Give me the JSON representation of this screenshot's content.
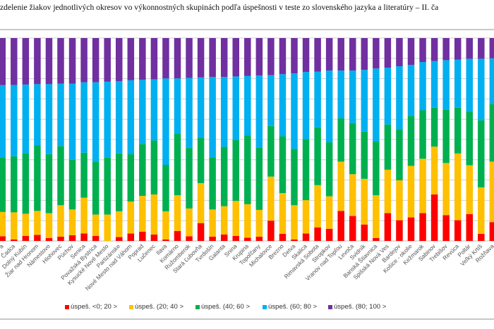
{
  "title": "zdelenie žiakov jednotlivých okresov vo výkonnostných skupinách podľa úspešnosti v teste zo slovenského jazyka a literatúry – II. ča",
  "chart_data": {
    "type": "bar",
    "stacked": "percent",
    "ylim": [
      0,
      100
    ],
    "grid": true,
    "legend_placement": "bottom",
    "categories": [
      "a",
      "Čadca",
      "Dolný Kubín",
      "Žiar nad Hronom",
      "Námestovo",
      "Hlohovec",
      "Púchov",
      "Senica",
      "Považská Bystrica",
      "Kysucké Nové Mesto",
      "Partizánske",
      "Nové Mesto nad Váhom",
      "Poprad",
      "Lučenec",
      "Ilava",
      "Komárno",
      "Ružomberok",
      "Stará Ľubovňa",
      "Tvrdošín",
      "Galanta",
      "Snina",
      "Krupina",
      "Topoľčany",
      "Michalovce",
      "Brezno",
      "Detva",
      "Skalica",
      "Rimavská Sobota",
      "Stropkov",
      "Vranov nad Topľou",
      "Levoča",
      "Svidník",
      "Banská Štiavnica",
      "Spišská Nová Ves",
      "Bardejov",
      "Košice - okolie",
      "Kežmarok",
      "Sabinov",
      "Trebišov",
      "Revúca",
      "Poltár",
      "Veľký Krtíš",
      "Rožňava",
      "G",
      "M"
    ],
    "series": [
      {
        "name": "úspeš. <0; 20 >",
        "color": "#FF0000",
        "values": [
          2.3,
          0.7,
          2.5,
          3.0,
          1.4,
          2.1,
          2.8,
          3.7,
          2.5,
          0,
          1.9,
          3.7,
          4.6,
          3.2,
          0.7,
          4.9,
          2.3,
          8.8,
          2.1,
          3.2,
          2.5,
          1.6,
          2.1,
          10.0,
          3.5,
          0.7,
          3.7,
          6.7,
          6.0,
          14.8,
          12.3,
          8.1,
          1.4,
          13.7,
          10.2,
          11.6,
          13.7,
          22.9,
          12.7,
          10.2,
          13.2,
          3.5,
          9.3,
          null,
          null
        ]
      },
      {
        "name": "úspeš. (20; 40 >",
        "color": "#FFC000",
        "values": [
          12.0,
          13.4,
          10.9,
          11.8,
          12.3,
          15.5,
          12.7,
          17.6,
          10.5,
          13.0,
          12.7,
          15.7,
          17.6,
          19.7,
          13.9,
          17.6,
          13.7,
          19.7,
          13.4,
          13.9,
          17.2,
          16.5,
          13.2,
          21.7,
          20.1,
          16.9,
          16.4,
          20.8,
          16.0,
          24.3,
          20.6,
          22.5,
          21.1,
          21.4,
          19.7,
          25.4,
          26.8,
          23.6,
          25.7,
          32.9,
          24.1,
          22.9,
          29.8,
          null,
          null
        ]
      },
      {
        "name": "úspeš. (40; 60 >",
        "color": "#00B050",
        "values": [
          26.9,
          27.6,
          29.8,
          32.4,
          29.1,
          29.2,
          24.5,
          22.2,
          26.1,
          28.0,
          28.5,
          23.3,
          25.6,
          26.6,
          22.9,
          30.5,
          29.8,
          22.4,
          25.7,
          29.3,
          30.1,
          33.8,
          30.8,
          25.0,
          28.0,
          27.8,
          30.1,
          28.5,
          26.6,
          21.3,
          25.2,
          23.3,
          26.6,
          22.3,
          25.2,
          24.6,
          23.9,
          19.2,
          26.2,
          22.6,
          26.4,
          33.1,
          28.5,
          null,
          null
        ]
      },
      {
        "name": "úspeš. (60; 80 >",
        "color": "#00B0F0",
        "values": [
          35.6,
          35.2,
          33.9,
          30.1,
          34.5,
          30.7,
          37.5,
          34.7,
          39.1,
          37.5,
          35.6,
          36.5,
          31.6,
          30.1,
          42.6,
          27.1,
          34.5,
          29.7,
          39.6,
          34.4,
          31.3,
          29.4,
          35.4,
          25.0,
          30.6,
          37.2,
          33.1,
          27.5,
          35.4,
          23.6,
          25.9,
          30.4,
          35.9,
          28.0,
          31.0,
          25.2,
          23.8,
          23.0,
          24.5,
          23.7,
          26.1,
          30.3,
          22.4,
          null,
          null
        ]
      },
      {
        "name": "úspeš. (80; 100 >",
        "color": "#7030A0",
        "values": [
          23.2,
          23.1,
          22.9,
          22.7,
          22.7,
          22.5,
          22.5,
          21.8,
          21.8,
          21.5,
          21.3,
          20.8,
          20.6,
          20.4,
          19.9,
          19.9,
          19.7,
          19.4,
          19.2,
          19.2,
          18.9,
          18.7,
          18.5,
          18.3,
          17.8,
          17.4,
          16.7,
          16.5,
          16.0,
          16.0,
          16.0,
          15.7,
          15.0,
          14.6,
          13.9,
          13.2,
          11.8,
          11.3,
          10.9,
          10.6,
          10.2,
          10.2,
          10.0,
          null,
          null
        ]
      }
    ]
  }
}
